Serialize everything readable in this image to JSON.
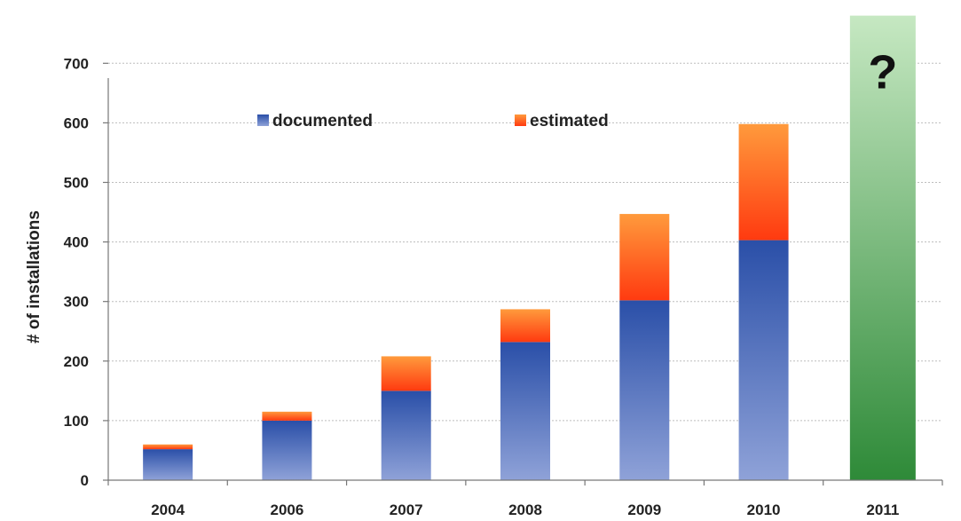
{
  "chart_data": {
    "type": "bar",
    "stacked": true,
    "categories": [
      "2004",
      "2006",
      "2007",
      "2008",
      "2009",
      "2010",
      "2011"
    ],
    "series": [
      {
        "name": "documented",
        "values": [
          52,
          100,
          150,
          232,
          302,
          403,
          null
        ]
      },
      {
        "name": "estimated",
        "values": [
          8,
          15,
          58,
          55,
          145,
          195,
          null
        ]
      }
    ],
    "projection": {
      "category": "2011",
      "label": "?",
      "value": 780
    },
    "ylabel": "# of installations",
    "xlabel": "",
    "ylim": [
      0,
      780
    ],
    "yticks": [
      0,
      100,
      200,
      300,
      400,
      500,
      600,
      700
    ],
    "grid": true,
    "legend_position": "top",
    "colors": {
      "documented_top": "#2a4fa8",
      "documented_bottom": "#8fa2d8",
      "estimated_top": "#ff9a3c",
      "estimated_bottom": "#ff3a10",
      "projection_top": "#c6e8c2",
      "projection_bottom": "#2e8a38",
      "grid": "#bdbdbd",
      "axis": "#777777"
    }
  }
}
